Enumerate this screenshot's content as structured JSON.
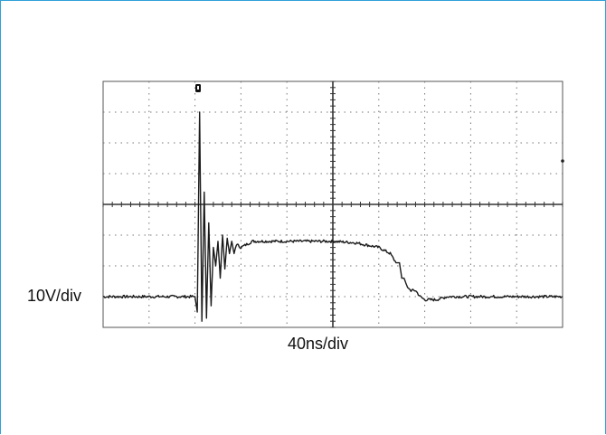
{
  "chart_data": {
    "type": "line",
    "vertical_scale_label": "10V/div",
    "time_scale_label": "40ns/div",
    "divisions": {
      "horizontal": 10,
      "vertical": 8
    },
    "x_unit": "ns",
    "y_unit": "V",
    "x_range_ns": [
      0,
      400
    ],
    "y_range_V": [
      -40,
      40
    ],
    "trigger_position_ns": 0,
    "series": [
      {
        "x": [
          0,
          20,
          40,
          60,
          80,
          82,
          84,
          86,
          88,
          90,
          92,
          94,
          96,
          98,
          100,
          102,
          104,
          106,
          108,
          110,
          112,
          114,
          116,
          120,
          125,
          130,
          140,
          160,
          180,
          200,
          220,
          240,
          250,
          255,
          258,
          260,
          262,
          265,
          268,
          272,
          276,
          280,
          290,
          300,
          320,
          340,
          360,
          380,
          400
        ],
        "y": [
          -30,
          -30,
          -30,
          -30,
          -30,
          -35,
          30,
          -38,
          4,
          -37,
          -6,
          -33,
          -14,
          -20,
          -12,
          -24,
          -10,
          -21,
          -11,
          -16,
          -12,
          -16,
          -13,
          -14,
          -13,
          -12,
          -12,
          -12,
          -12,
          -12,
          -12.5,
          -14,
          -16,
          -19,
          -19,
          -24,
          -24,
          -27,
          -28,
          -28,
          -30,
          -31,
          -31,
          -30,
          -30,
          -30,
          -30,
          -30,
          -30
        ]
      }
    ]
  }
}
